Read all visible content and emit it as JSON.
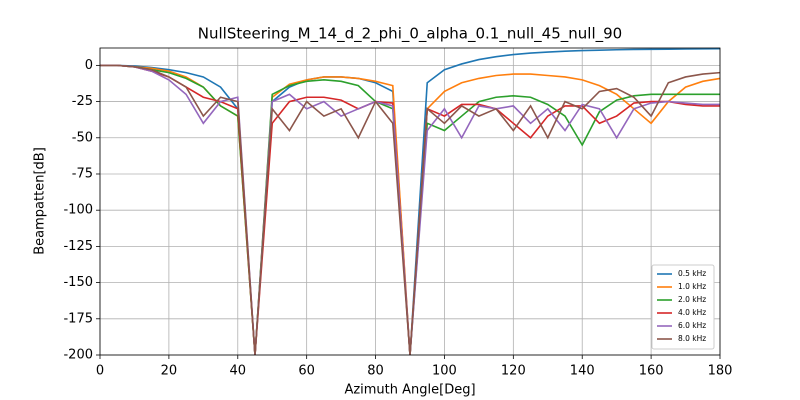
{
  "chart_data": {
    "type": "line",
    "title": "NullSteering_M_14_d_2_phi_0_alpha_0.1_null_45_null_90",
    "x_label": "Azimuth Angle[Deg]",
    "y_label": "Beampatten[dB]",
    "x": [
      0,
      5,
      10,
      15,
      20,
      25,
      30,
      35,
      40,
      45,
      50,
      55,
      60,
      65,
      70,
      75,
      80,
      85,
      90,
      95,
      100,
      105,
      110,
      115,
      120,
      125,
      130,
      135,
      140,
      145,
      150,
      155,
      160,
      165,
      170,
      175,
      180
    ],
    "series": [
      {
        "name": "0.5 kHz",
        "color": "#1f77b4",
        "values": [
          0,
          0,
          -0.5,
          -1.5,
          -3,
          -5,
          -8,
          -15,
          -30,
          -200,
          -25,
          -15,
          -10,
          -8,
          -8,
          -9,
          -12,
          -18,
          -200,
          -12,
          -3,
          1,
          4,
          6,
          7.5,
          8.5,
          9.2,
          9.8,
          10.2,
          10.5,
          10.8,
          11,
          11.1,
          11.2,
          11.3,
          11.4,
          11.5
        ]
      },
      {
        "name": "1.0 kHz",
        "color": "#ff7f0e",
        "values": [
          0,
          0,
          -1,
          -2,
          -4,
          -8,
          -15,
          -28,
          -35,
          -200,
          -22,
          -13,
          -10,
          -8,
          -8,
          -9,
          -11,
          -14,
          -200,
          -30,
          -18,
          -12,
          -9,
          -7,
          -6,
          -6,
          -7,
          -8,
          -10,
          -14,
          -20,
          -30,
          -40,
          -25,
          -15,
          -11,
          -9
        ]
      },
      {
        "name": "2.0 kHz",
        "color": "#2ca02c",
        "values": [
          0,
          0,
          -1,
          -3,
          -5,
          -9,
          -15,
          -28,
          -35,
          -200,
          -20,
          -14,
          -11,
          -10,
          -11,
          -14,
          -25,
          -30,
          -200,
          -40,
          -45,
          -35,
          -25,
          -22,
          -21,
          -22,
          -27,
          -35,
          -55,
          -32,
          -24,
          -21,
          -20,
          -20,
          -20,
          -20,
          -20
        ]
      },
      {
        "name": "4.0 kHz",
        "color": "#d62728",
        "values": [
          0,
          0,
          -1,
          -4,
          -8,
          -15,
          -22,
          -25,
          -30,
          -200,
          -40,
          -25,
          -22,
          -22,
          -24,
          -30,
          -25,
          -26,
          -200,
          -30,
          -35,
          -27,
          -27,
          -30,
          -40,
          -50,
          -35,
          -28,
          -28,
          -40,
          -35,
          -26,
          -25,
          -25,
          -27,
          -28,
          -28
        ]
      },
      {
        "name": "6.0 kHz",
        "color": "#9467bd",
        "values": [
          0,
          0,
          -1,
          -4,
          -10,
          -20,
          -40,
          -25,
          -22,
          -200,
          -25,
          -20,
          -30,
          -25,
          -35,
          -30,
          -25,
          -28,
          -200,
          -45,
          -30,
          -50,
          -28,
          -30,
          -28,
          -40,
          -30,
          -45,
          -27,
          -30,
          -50,
          -30,
          -26,
          -25,
          -26,
          -27,
          -27
        ]
      },
      {
        "name": "8.0 kHz",
        "color": "#8c564b",
        "values": [
          0,
          0,
          -1,
          -3,
          -8,
          -15,
          -35,
          -22,
          -25,
          -200,
          -30,
          -45,
          -25,
          -35,
          -30,
          -50,
          -25,
          -40,
          -200,
          -30,
          -40,
          -28,
          -35,
          -30,
          -45,
          -28,
          -50,
          -25,
          -30,
          -18,
          -16,
          -22,
          -35,
          -12,
          -8,
          -6,
          -5
        ]
      }
    ],
    "xlim": [
      0,
      180
    ],
    "xticks": [
      0,
      20,
      40,
      60,
      80,
      100,
      120,
      140,
      160,
      180
    ],
    "ylim": [
      -200,
      12
    ],
    "yticks": [
      -200,
      -175,
      -150,
      -125,
      -100,
      -75,
      -50,
      -25,
      0
    ],
    "grid": true,
    "legend": "lower right"
  }
}
